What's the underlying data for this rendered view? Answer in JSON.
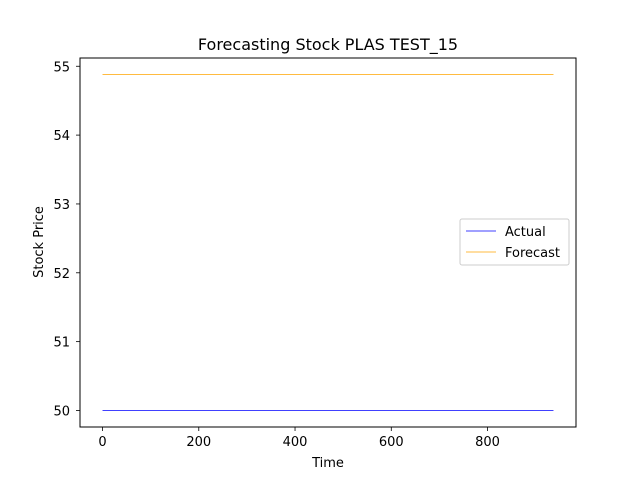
{
  "chart_data": {
    "type": "line",
    "title": "Forecasting Stock PLAS TEST_15",
    "xlabel": "Time",
    "ylabel": "Stock Price",
    "xlim": [
      -46.8,
      983.8
    ],
    "ylim": [
      49.76,
      55.12
    ],
    "xticks": [
      0,
      200,
      400,
      600,
      800
    ],
    "yticks": [
      50,
      51,
      52,
      53,
      54,
      55
    ],
    "grid": false,
    "legend_position": "center-right",
    "series": [
      {
        "name": "Actual",
        "color": "#0000ff",
        "x": [
          0,
          937
        ],
        "y": [
          50.0,
          50.0
        ]
      },
      {
        "name": "Forecast",
        "color": "#ffa500",
        "x": [
          0,
          937
        ],
        "y": [
          54.88,
          54.88
        ]
      }
    ]
  }
}
